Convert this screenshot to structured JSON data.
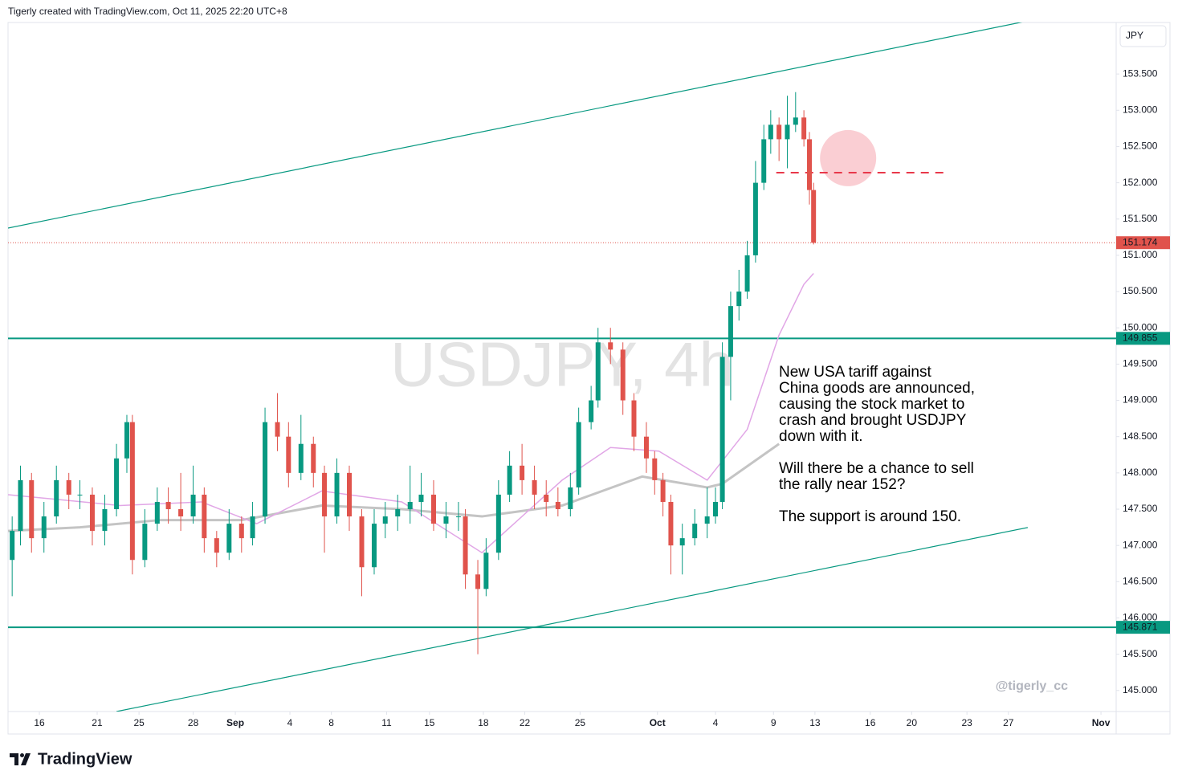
{
  "header": "Tigerly created with TradingView.com, Oct 11, 2025 22:20 UTC+8",
  "footer": "TradingView",
  "chart_data": {
    "type": "candlestick",
    "watermark": "USDJPY, 4h",
    "currency": "JPY",
    "signature": "@tigerly_cc",
    "up_color": "#089981",
    "down_color": "#e0534c",
    "xlim": [
      0,
      80.2
    ],
    "ylim": [
      144.71,
      154.21
    ],
    "xticks": [
      {
        "value": 2.27,
        "label": "16"
      },
      {
        "value": 6.45,
        "label": "21"
      },
      {
        "value": 9.48,
        "label": "25"
      },
      {
        "value": 13.4,
        "label": "28"
      },
      {
        "value": 16.45,
        "label": "Sep"
      },
      {
        "value": 20.4,
        "label": "4"
      },
      {
        "value": 23.4,
        "label": "8"
      },
      {
        "value": 27.4,
        "label": "11"
      },
      {
        "value": 30.5,
        "label": "15"
      },
      {
        "value": 34.4,
        "label": "18"
      },
      {
        "value": 37.4,
        "label": "22"
      },
      {
        "value": 41.4,
        "label": "25"
      },
      {
        "value": 47.0,
        "label": "Oct"
      },
      {
        "value": 51.2,
        "label": "4"
      },
      {
        "value": 55.4,
        "label": "9"
      },
      {
        "value": 58.4,
        "label": "13"
      },
      {
        "value": 62.4,
        "label": "16"
      },
      {
        "value": 65.4,
        "label": "20"
      },
      {
        "value": 69.4,
        "label": "23"
      },
      {
        "value": 72.4,
        "label": "27"
      },
      {
        "value": 79.1,
        "label": "Nov"
      }
    ],
    "yticks": [
      {
        "value": 145,
        "label": "145.000"
      },
      {
        "value": 145.5,
        "label": "145.500"
      },
      {
        "value": 146,
        "label": "146.000"
      },
      {
        "value": 146.5,
        "label": "146.500"
      },
      {
        "value": 147,
        "label": "147.000"
      },
      {
        "value": 147.5,
        "label": "147.500"
      },
      {
        "value": 148,
        "label": "148.000"
      },
      {
        "value": 148.5,
        "label": "148.500"
      },
      {
        "value": 149,
        "label": "149.000"
      },
      {
        "value": 149.5,
        "label": "149.500"
      },
      {
        "value": 150,
        "label": "150.000"
      },
      {
        "value": 150.5,
        "label": "150.500"
      },
      {
        "value": 151,
        "label": "151.000"
      },
      {
        "value": 151.5,
        "label": "151.500"
      },
      {
        "value": 152,
        "label": "152.000"
      },
      {
        "value": 152.5,
        "label": "152.500"
      },
      {
        "value": 153,
        "label": "153.000"
      },
      {
        "value": 153.5,
        "label": "153.500"
      }
    ],
    "x": [
      0.3,
      0.9,
      1.7,
      2.6,
      3.5,
      4.4,
      5.2,
      6.1,
      7.0,
      7.85,
      8.6,
      9.0,
      9.9,
      10.8,
      11.6,
      12.5,
      13.4,
      14.2,
      15.1,
      16.0,
      16.9,
      17.7,
      18.6,
      19.5,
      20.3,
      21.2,
      22.1,
      22.9,
      23.8,
      24.7,
      25.6,
      26.5,
      27.3,
      28.2,
      29.1,
      29.9,
      30.8,
      31.7,
      32.6,
      33.1,
      34.0,
      34.6,
      35.5,
      36.3,
      37.2,
      38.1,
      38.95,
      39.8,
      40.7,
      41.3,
      42.2,
      42.7,
      43.6,
      44.5,
      45.3,
      46.2,
      46.8,
      47.4,
      47.97,
      48.8,
      49.7,
      50.6,
      51.2,
      51.7,
      52.3,
      52.9,
      53.5,
      54.1,
      54.7,
      55.2,
      55.8,
      56.4,
      57.0,
      57.6,
      58.0,
      58.3
    ],
    "open": [
      146.8,
      147.2,
      147.9,
      147.1,
      147.4,
      147.9,
      147.7,
      147.7,
      147.2,
      147.5,
      148.2,
      148.7,
      146.8,
      147.3,
      147.6,
      147.5,
      147.4,
      147.7,
      147.1,
      146.9,
      147.3,
      147.1,
      147.4,
      148.7,
      148.5,
      148.0,
      148.4,
      148.0,
      147.4,
      148.0,
      147.4,
      146.7,
      147.3,
      147.4,
      147.5,
      147.6,
      147.7,
      147.3,
      147.4,
      147.4,
      146.6,
      146.4,
      146.9,
      147.7,
      148.1,
      147.9,
      147.7,
      147.6,
      147.5,
      147.8,
      148.7,
      149.0,
      149.8,
      149.7,
      149.0,
      148.5,
      148.2,
      147.9,
      147.6,
      147.0,
      147.1,
      147.3,
      147.4,
      147.6,
      149.6,
      150.3,
      150.5,
      151.0,
      152.0,
      152.6,
      152.8,
      152.6,
      152.8,
      152.9,
      152.6,
      151.9
    ],
    "high": [
      147.4,
      148.1,
      148.0,
      147.6,
      148.1,
      148.0,
      147.9,
      147.8,
      147.7,
      148.4,
      148.8,
      148.8,
      147.5,
      147.8,
      147.8,
      148.0,
      148.1,
      147.8,
      147.2,
      147.5,
      147.4,
      147.6,
      148.9,
      149.1,
      148.7,
      148.8,
      148.5,
      148.1,
      148.2,
      148.1,
      147.5,
      147.5,
      147.6,
      147.7,
      148.1,
      148.0,
      147.9,
      147.6,
      147.6,
      147.5,
      146.8,
      147.1,
      147.9,
      148.3,
      148.4,
      148.1,
      147.9,
      147.8,
      148.0,
      148.9,
      149.2,
      150.0,
      150.0,
      149.8,
      149.1,
      148.7,
      148.3,
      148.0,
      147.7,
      147.3,
      147.5,
      147.8,
      147.8,
      149.8,
      150.5,
      150.8,
      151.2,
      152.3,
      152.8,
      153.0,
      152.9,
      153.2,
      153.25,
      153.0,
      152.7,
      152.0
    ],
    "low": [
      146.3,
      147.0,
      146.9,
      146.9,
      147.3,
      147.5,
      147.5,
      147.0,
      147.0,
      147.4,
      148.0,
      146.6,
      146.7,
      147.2,
      147.3,
      147.2,
      147.3,
      146.9,
      146.7,
      146.8,
      146.9,
      147.0,
      147.3,
      148.3,
      147.8,
      147.9,
      147.8,
      146.9,
      147.3,
      147.2,
      146.3,
      146.6,
      147.1,
      147.2,
      147.3,
      147.4,
      147.2,
      147.1,
      147.2,
      146.4,
      145.5,
      146.3,
      146.8,
      147.6,
      147.7,
      147.5,
      147.4,
      147.4,
      147.4,
      147.7,
      148.6,
      148.9,
      149.5,
      148.8,
      148.3,
      148.0,
      147.7,
      147.4,
      146.6,
      146.6,
      147.0,
      147.1,
      147.3,
      147.5,
      149.0,
      150.1,
      150.4,
      150.9,
      151.9,
      152.4,
      152.3,
      152.2,
      152.7,
      152.5,
      151.7,
      151.15
    ],
    "close": [
      147.2,
      147.9,
      147.1,
      147.4,
      147.9,
      147.7,
      147.7,
      147.2,
      147.5,
      148.2,
      148.7,
      146.8,
      147.3,
      147.6,
      147.5,
      147.4,
      147.7,
      147.1,
      146.9,
      147.3,
      147.1,
      147.4,
      148.7,
      148.5,
      148.0,
      148.4,
      148.0,
      147.4,
      148.0,
      147.4,
      146.7,
      147.3,
      147.4,
      147.5,
      147.6,
      147.7,
      147.3,
      147.4,
      147.4,
      146.6,
      146.4,
      146.9,
      147.7,
      148.1,
      147.9,
      147.7,
      147.6,
      147.5,
      147.8,
      148.7,
      149.0,
      149.8,
      149.7,
      149.0,
      148.5,
      148.2,
      147.9,
      147.6,
      147.0,
      147.1,
      147.3,
      147.4,
      147.6,
      149.6,
      150.3,
      150.5,
      151.0,
      152.0,
      152.6,
      152.8,
      152.6,
      152.8,
      152.9,
      152.6,
      151.9,
      151.174
    ],
    "moving_averages": [
      {
        "color": "#c4c4c4",
        "width": 3,
        "x": [
          0,
          5.2,
          11.0,
          16.9,
          22.7,
          28.5,
          34.3,
          40.1,
          45.9,
          50.6,
          51.7,
          55.8
        ],
        "values": [
          147.2,
          147.25,
          147.35,
          147.35,
          147.55,
          147.5,
          147.4,
          147.55,
          147.95,
          147.8,
          147.85,
          148.4
        ]
      },
      {
        "color": "#e1a6e6",
        "width": 1.5,
        "x": [
          0,
          8.1,
          14.0,
          18.0,
          22.7,
          28.5,
          34.3,
          40.1,
          43.6,
          47.1,
          50.6,
          53.5,
          55.8,
          57.6,
          58.3
        ],
        "values": [
          147.7,
          147.55,
          147.6,
          147.3,
          147.75,
          147.6,
          146.9,
          147.9,
          148.35,
          148.3,
          147.9,
          148.6,
          149.9,
          150.6,
          150.75
        ]
      }
    ],
    "trendlines": [
      {
        "color": "#089981",
        "x": [
          0,
          73.5
        ],
        "values": [
          151.375,
          154.22
        ]
      },
      {
        "color": "#089981",
        "x": [
          7.85,
          73.8
        ],
        "values": [
          144.71,
          147.247
        ]
      }
    ],
    "levels": [
      {
        "value": 149.855,
        "label": "149.855",
        "color": "#089981"
      },
      {
        "value": 145.871,
        "label": "145.871",
        "color": "#089981"
      }
    ],
    "last_price": {
      "value": 151.174,
      "label": "151.174",
      "color": "#e0534c"
    },
    "target_line": {
      "x": [
        55.6,
        67.7
      ],
      "value": 152.14,
      "color": "#e8384a"
    },
    "target_zone": {
      "x": 60.8,
      "value": 152.34,
      "color": "#f9c5cb"
    },
    "annotation": [
      [
        "New USA tariff against",
        "China goods are announced,",
        "causing the stock market to",
        "crash and brought USDJPY",
        "down with it."
      ],
      [
        "Will there be a chance to sell",
        "the rally near 152?"
      ],
      [
        "The support is around 150."
      ]
    ]
  }
}
